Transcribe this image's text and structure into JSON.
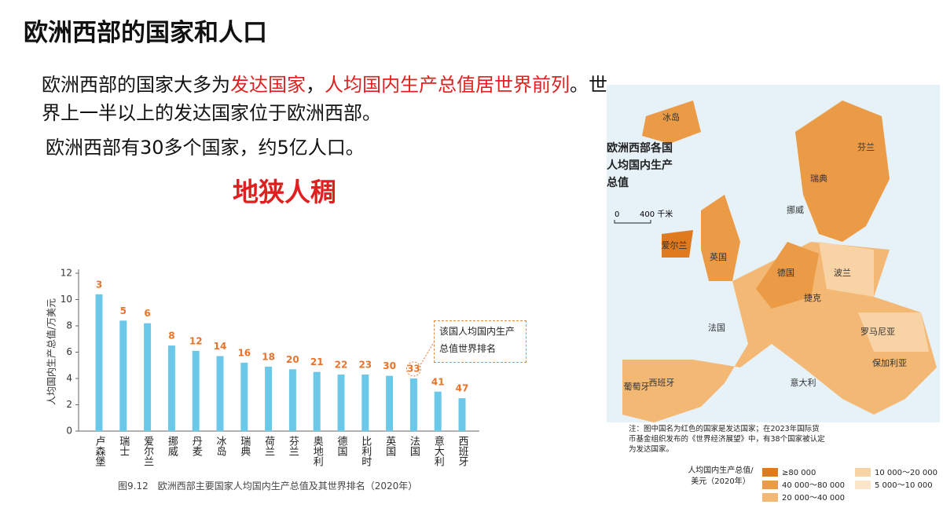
{
  "title": "欧洲西部的国家和人口",
  "paragraphs": [
    [
      "欧洲西部的国家大多为",
      {
        "text": "发达国家",
        "emphasis": "red"
      },
      "，",
      {
        "text": "人均国内生产总值居世界前列",
        "emphasis": "red"
      },
      "。世界上一半以上的发达国家位于欧洲西部。"
    ],
    [
      "欧洲西部有30多个国家，约5亿人口。"
    ]
  ],
  "highlight": "地狭人稠",
  "chart_data": {
    "type": "bar",
    "y_label": "人均国内生产总值/万美元",
    "categories": [
      "卢森堡",
      "瑞士",
      "爱尔兰",
      "挪威",
      "丹麦",
      "冰岛",
      "瑞典",
      "荷兰",
      "芬兰",
      "奥地利",
      "德国",
      "比利时",
      "英国",
      "法国",
      "意大利",
      "西班牙"
    ],
    "values": [
      10.4,
      8.4,
      8.2,
      6.5,
      6.1,
      5.7,
      5.2,
      4.9,
      4.7,
      4.5,
      4.3,
      4.3,
      4.2,
      4.0,
      3.0,
      2.5
    ],
    "ranks": [
      3,
      5,
      6,
      8,
      12,
      14,
      16,
      18,
      20,
      21,
      22,
      23,
      30,
      33,
      41,
      47
    ],
    "color": "#6cc8e8",
    "rank_color": "#e8732a",
    "ylim": [
      0,
      12
    ],
    "yticks": [
      0,
      2,
      4,
      6,
      8,
      10,
      12
    ],
    "annotation": "该国人均国内生产总值世界排名",
    "caption": "图9.12　欧洲西部主要国家人均国内生产总值及其世界排名（2020年）"
  },
  "map": {
    "title": "欧洲西部各国人均国内生产总值",
    "scale": [
      "0",
      "400 千米"
    ],
    "countries": [
      "冰岛",
      "瑞典",
      "芬兰",
      "挪威",
      "英国",
      "爱尔兰",
      "德国",
      "波兰",
      "法国",
      "西班牙",
      "意大利",
      "罗马尼亚",
      "保加利亚",
      "捷克",
      "葡萄牙"
    ],
    "note": "注：图中国名为红色的国家是发达国家；在2023年国际货币基金组织发布的《世界经济展望》中，有38个国家被认定为发达国家。",
    "legend_title": "人均国内生产总值/美元（2020年）",
    "legend": [
      {
        "label": "≥80 000",
        "color": "#e07a1f"
      },
      {
        "label": "40 000～80 000",
        "color": "#eb9a45"
      },
      {
        "label": "20 000～40 000",
        "color": "#f3b874"
      },
      {
        "label": "10 000～20 000",
        "color": "#f7d3a6"
      },
      {
        "label": "5 000～10 000",
        "color": "#fbe6cc"
      }
    ]
  }
}
